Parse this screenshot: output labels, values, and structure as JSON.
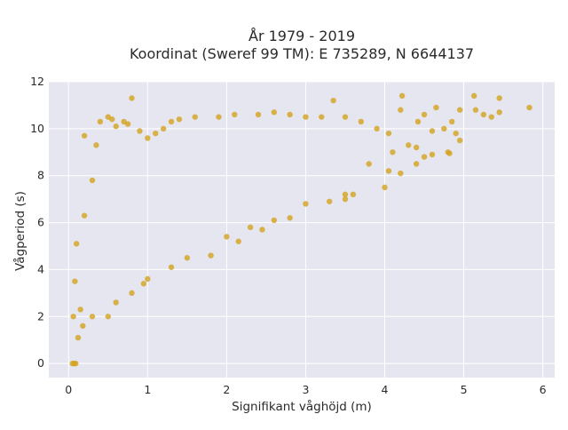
{
  "chart_data": {
    "type": "scatter",
    "title": "År 1979 - 2019",
    "subtitle": "Koordinat (Sweref 99 TM): E 735289, N 6644137",
    "xlabel": "Signifikant våghöjd (m)",
    "ylabel": "Vågperiod (s)",
    "xlim": [
      -0.25,
      6.15
    ],
    "ylim": [
      -0.6,
      12.0
    ],
    "x_ticks": [
      0,
      1,
      2,
      3,
      4,
      5,
      6
    ],
    "y_ticks": [
      0,
      2,
      4,
      6,
      8,
      10,
      12
    ],
    "grid": true,
    "legend": "none",
    "colors": {
      "plot_background": "#e6e6f0",
      "grid": "#ffffff",
      "marker": "#d4a21e"
    },
    "series": [
      {
        "name": "",
        "points": [
          [
            0.05,
            0.0
          ],
          [
            0.07,
            0.0
          ],
          [
            0.09,
            0.0
          ],
          [
            0.06,
            2.0
          ],
          [
            0.08,
            3.5
          ],
          [
            0.1,
            5.1
          ],
          [
            0.12,
            1.1
          ],
          [
            0.15,
            2.3
          ],
          [
            0.2,
            6.3
          ],
          [
            0.2,
            9.7
          ],
          [
            0.3,
            7.8
          ],
          [
            0.35,
            9.3
          ],
          [
            0.4,
            10.3
          ],
          [
            0.5,
            10.5
          ],
          [
            0.55,
            10.4
          ],
          [
            0.6,
            10.1
          ],
          [
            0.7,
            10.3
          ],
          [
            0.75,
            10.2
          ],
          [
            0.8,
            11.3
          ],
          [
            0.9,
            9.9
          ],
          [
            1.0,
            9.6
          ],
          [
            1.1,
            9.8
          ],
          [
            1.2,
            10.0
          ],
          [
            1.3,
            10.3
          ],
          [
            1.4,
            10.4
          ],
          [
            1.6,
            10.5
          ],
          [
            1.9,
            10.5
          ],
          [
            2.1,
            10.6
          ],
          [
            2.4,
            10.6
          ],
          [
            2.6,
            10.7
          ],
          [
            2.8,
            10.6
          ],
          [
            3.0,
            10.5
          ],
          [
            3.2,
            10.5
          ],
          [
            3.35,
            11.2
          ],
          [
            3.5,
            10.5
          ],
          [
            3.7,
            10.3
          ],
          [
            3.9,
            10.0
          ],
          [
            4.05,
            9.8
          ],
          [
            4.2,
            10.8
          ],
          [
            4.22,
            11.4
          ],
          [
            4.3,
            9.3
          ],
          [
            4.42,
            10.3
          ],
          [
            4.5,
            10.6
          ],
          [
            4.6,
            9.9
          ],
          [
            4.65,
            10.9
          ],
          [
            4.75,
            10.0
          ],
          [
            4.85,
            10.3
          ],
          [
            4.9,
            9.8
          ],
          [
            4.95,
            9.5
          ],
          [
            4.95,
            10.8
          ],
          [
            5.13,
            11.4
          ],
          [
            5.15,
            10.8
          ],
          [
            5.25,
            10.6
          ],
          [
            5.35,
            10.5
          ],
          [
            5.45,
            11.3
          ],
          [
            5.45,
            10.7
          ],
          [
            5.83,
            10.9
          ],
          [
            0.5,
            2.0
          ],
          [
            0.8,
            3.0
          ],
          [
            1.0,
            3.6
          ],
          [
            1.5,
            4.5
          ],
          [
            2.0,
            5.4
          ],
          [
            2.3,
            5.8
          ],
          [
            2.6,
            6.1
          ],
          [
            3.0,
            6.8
          ],
          [
            3.5,
            7.0
          ],
          [
            4.0,
            7.5
          ],
          [
            4.2,
            8.1
          ],
          [
            4.05,
            8.2
          ],
          [
            3.8,
            8.5
          ],
          [
            3.6,
            7.2
          ],
          [
            3.5,
            7.2
          ],
          [
            4.4,
            8.5
          ],
          [
            4.5,
            8.8
          ],
          [
            4.6,
            8.9
          ],
          [
            4.8,
            9.0
          ],
          [
            4.82,
            8.95
          ],
          [
            4.4,
            9.2
          ],
          [
            4.1,
            9.0
          ],
          [
            3.3,
            6.9
          ],
          [
            2.8,
            6.2
          ],
          [
            2.45,
            5.7
          ],
          [
            2.15,
            5.2
          ],
          [
            1.8,
            4.6
          ],
          [
            1.3,
            4.1
          ],
          [
            0.95,
            3.4
          ],
          [
            0.6,
            2.6
          ],
          [
            0.3,
            2.0
          ],
          [
            0.18,
            1.6
          ]
        ]
      }
    ]
  }
}
